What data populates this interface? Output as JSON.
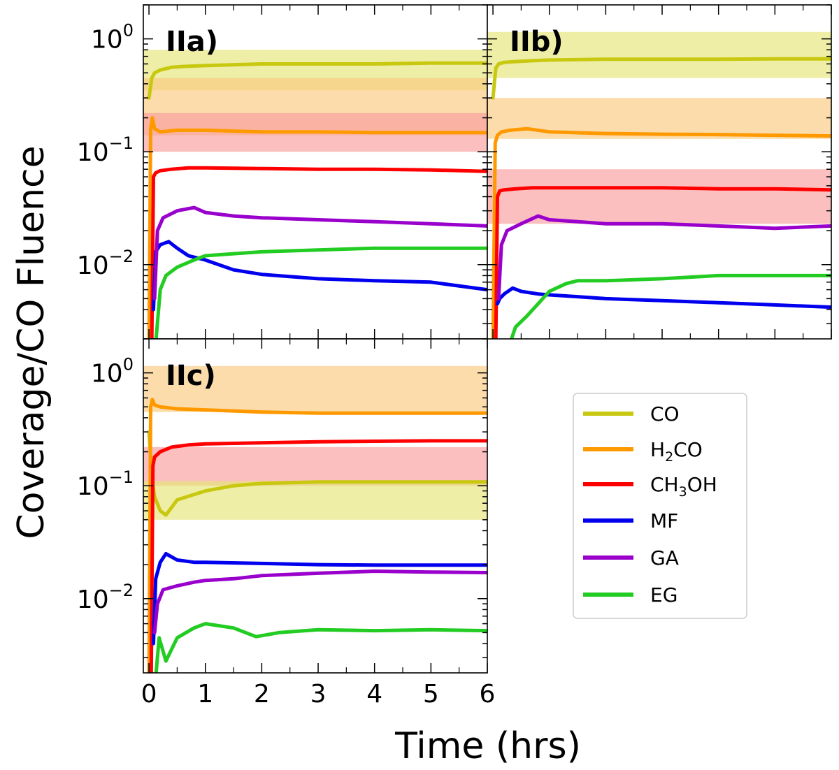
{
  "chart_data": [
    {
      "type": "line",
      "panel": "IIa)",
      "title": "",
      "xlabel": "Time (hrs)",
      "ylabel": "Coverage/CO Fluence",
      "xlim": [
        -0.1,
        6
      ],
      "ylim": [
        0.0022,
        2.0
      ],
      "yscale": "log",
      "bands": [
        {
          "species": "CO",
          "range": [
            0.35,
            0.8
          ],
          "color": "#e5e577"
        },
        {
          "species": "H2CO",
          "range": [
            0.14,
            0.45
          ],
          "color": "#fbc97e"
        },
        {
          "species": "CH3OH",
          "range": [
            0.1,
            0.22
          ],
          "color": "#f99c9c"
        }
      ],
      "series": [
        {
          "name": "CO",
          "color": "#c8c810",
          "x": [
            0,
            0.05,
            0.1,
            0.2,
            0.4,
            0.6,
            1,
            2,
            3,
            4,
            5,
            6
          ],
          "values": [
            0.3,
            0.45,
            0.5,
            0.53,
            0.56,
            0.57,
            0.58,
            0.6,
            0.6,
            0.6,
            0.61,
            0.61
          ]
        },
        {
          "name": "H2CO",
          "color": "#ff9900",
          "x": [
            0,
            0.03,
            0.06,
            0.1,
            0.2,
            0.5,
            1,
            2,
            3,
            4,
            5,
            6
          ],
          "values": [
            0.002,
            0.16,
            0.2,
            0.16,
            0.15,
            0.155,
            0.155,
            0.15,
            0.15,
            0.148,
            0.148,
            0.148
          ]
        },
        {
          "name": "CH3OH",
          "color": "#ff0000",
          "x": [
            0.05,
            0.08,
            0.12,
            0.2,
            0.4,
            0.7,
            1,
            2,
            3,
            4,
            5,
            6
          ],
          "values": [
            0.002,
            0.06,
            0.065,
            0.068,
            0.07,
            0.072,
            0.072,
            0.071,
            0.07,
            0.07,
            0.069,
            0.067
          ]
        },
        {
          "name": "MF",
          "color": "#0000ee",
          "x": [
            0.08,
            0.12,
            0.2,
            0.35,
            0.5,
            0.7,
            1,
            1.5,
            2,
            3,
            4,
            5,
            6
          ],
          "values": [
            0.004,
            0.013,
            0.015,
            0.016,
            0.014,
            0.012,
            0.011,
            0.009,
            0.0082,
            0.0075,
            0.0072,
            0.007,
            0.006
          ]
        },
        {
          "name": "GA",
          "color": "#9900cc",
          "x": [
            0.1,
            0.15,
            0.25,
            0.5,
            0.8,
            1,
            1.5,
            2,
            3,
            4,
            5,
            6
          ],
          "values": [
            0.005,
            0.02,
            0.026,
            0.03,
            0.032,
            0.029,
            0.027,
            0.026,
            0.025,
            0.024,
            0.023,
            0.022
          ]
        },
        {
          "name": "EG",
          "color": "#22cc22",
          "x": [
            0.12,
            0.2,
            0.3,
            0.5,
            0.8,
            1,
            1.5,
            2,
            3,
            4,
            5,
            6
          ],
          "values": [
            0.002,
            0.006,
            0.008,
            0.0095,
            0.011,
            0.012,
            0.0125,
            0.013,
            0.0135,
            0.014,
            0.014,
            0.014
          ]
        }
      ]
    },
    {
      "type": "line",
      "panel": "IIb)",
      "title": "",
      "xlabel": "Time (hrs)",
      "ylabel": "Coverage/CO Fluence",
      "xlim": [
        -0.1,
        6
      ],
      "ylim": [
        0.0022,
        2.0
      ],
      "yscale": "log",
      "bands": [
        {
          "species": "CO",
          "range": [
            0.45,
            1.15
          ],
          "color": "#e5e577"
        },
        {
          "species": "H2CO",
          "range": [
            0.13,
            0.3
          ],
          "color": "#fbc97e"
        },
        {
          "species": "CH3OH",
          "range": [
            0.023,
            0.07
          ],
          "color": "#f99c9c"
        }
      ],
      "series": [
        {
          "name": "CO",
          "color": "#c8c810",
          "x": [
            0,
            0.05,
            0.1,
            0.2,
            0.4,
            0.7,
            1,
            2,
            3,
            4,
            5,
            6
          ],
          "values": [
            0.3,
            0.55,
            0.6,
            0.62,
            0.63,
            0.64,
            0.65,
            0.66,
            0.66,
            0.66,
            0.665,
            0.665
          ]
        },
        {
          "name": "H2CO",
          "color": "#ff9900",
          "x": [
            0,
            0.04,
            0.08,
            0.15,
            0.3,
            0.6,
            1,
            2,
            3,
            4,
            5,
            6
          ],
          "values": [
            0.002,
            0.12,
            0.14,
            0.15,
            0.155,
            0.16,
            0.15,
            0.145,
            0.143,
            0.142,
            0.14,
            0.138
          ]
        },
        {
          "name": "CH3OH",
          "color": "#ff0000",
          "x": [
            0.05,
            0.08,
            0.12,
            0.2,
            0.4,
            0.7,
            1,
            2,
            3,
            4,
            5,
            6
          ],
          "values": [
            0.002,
            0.04,
            0.045,
            0.046,
            0.047,
            0.048,
            0.048,
            0.048,
            0.048,
            0.047,
            0.047,
            0.046
          ]
        },
        {
          "name": "MF",
          "color": "#0000ee",
          "x": [
            0.08,
            0.12,
            0.2,
            0.35,
            0.5,
            0.8,
            1,
            1.5,
            2,
            3,
            4,
            5,
            6
          ],
          "values": [
            0.0045,
            0.005,
            0.0055,
            0.0062,
            0.0058,
            0.0055,
            0.0054,
            0.0052,
            0.005,
            0.0048,
            0.0046,
            0.0044,
            0.0042
          ]
        },
        {
          "name": "GA",
          "color": "#9900cc",
          "x": [
            0.1,
            0.15,
            0.25,
            0.5,
            0.8,
            1,
            1.5,
            2,
            3,
            4,
            5,
            6
          ],
          "values": [
            0.005,
            0.015,
            0.02,
            0.023,
            0.027,
            0.025,
            0.024,
            0.023,
            0.023,
            0.022,
            0.021,
            0.022
          ]
        },
        {
          "name": "EG",
          "color": "#22cc22",
          "x": [
            0.3,
            0.4,
            0.6,
            0.8,
            1,
            1.3,
            1.5,
            2,
            3,
            4,
            5,
            6
          ],
          "values": [
            0.002,
            0.0028,
            0.0035,
            0.0045,
            0.0058,
            0.0068,
            0.0072,
            0.0072,
            0.0075,
            0.008,
            0.008,
            0.008
          ]
        }
      ]
    },
    {
      "type": "line",
      "panel": "IIc)",
      "title": "",
      "xlabel": "Time (hrs)",
      "ylabel": "Coverage/CO Fluence",
      "xlim": [
        -0.1,
        6
      ],
      "ylim": [
        0.0022,
        2.0
      ],
      "yscale": "log",
      "xticks": [
        0,
        1,
        2,
        3,
        4,
        5,
        6
      ],
      "bands": [
        {
          "species": "H2CO",
          "range": [
            0.45,
            1.15
          ],
          "color": "#fbc97e"
        },
        {
          "species": "CH3OH",
          "range": [
            0.1,
            0.22
          ],
          "color": "#f99c9c"
        },
        {
          "species": "CO",
          "range": [
            0.05,
            0.11
          ],
          "color": "#e5e577"
        }
      ],
      "series": [
        {
          "name": "CO",
          "color": "#c8c810",
          "x": [
            0,
            0.05,
            0.1,
            0.2,
            0.3,
            0.5,
            1,
            1.5,
            2,
            3,
            4,
            5,
            6
          ],
          "values": [
            0.3,
            0.12,
            0.08,
            0.06,
            0.055,
            0.075,
            0.09,
            0.1,
            0.105,
            0.108,
            0.108,
            0.108,
            0.108
          ]
        },
        {
          "name": "H2CO",
          "color": "#ff9900",
          "x": [
            0,
            0.03,
            0.06,
            0.1,
            0.2,
            0.5,
            1,
            2,
            3,
            4,
            5,
            6
          ],
          "values": [
            0.002,
            0.5,
            0.58,
            0.52,
            0.5,
            0.48,
            0.47,
            0.45,
            0.44,
            0.44,
            0.44,
            0.44
          ]
        },
        {
          "name": "CH3OH",
          "color": "#ff0000",
          "x": [
            0.04,
            0.07,
            0.1,
            0.2,
            0.4,
            0.7,
            1,
            2,
            3,
            4,
            5,
            6
          ],
          "values": [
            0.002,
            0.15,
            0.18,
            0.2,
            0.22,
            0.23,
            0.235,
            0.24,
            0.245,
            0.248,
            0.25,
            0.25
          ]
        },
        {
          "name": "MF",
          "color": "#0000ee",
          "x": [
            0.08,
            0.12,
            0.2,
            0.3,
            0.5,
            0.8,
            1,
            2,
            3,
            4,
            5,
            6
          ],
          "values": [
            0.004,
            0.015,
            0.021,
            0.025,
            0.022,
            0.021,
            0.021,
            0.0205,
            0.02,
            0.0198,
            0.0198,
            0.0198
          ]
        },
        {
          "name": "GA",
          "color": "#9900cc",
          "x": [
            0.1,
            0.15,
            0.25,
            0.5,
            0.8,
            1,
            1.5,
            2,
            3,
            4,
            5,
            6
          ],
          "values": [
            0.005,
            0.009,
            0.012,
            0.013,
            0.014,
            0.0145,
            0.015,
            0.016,
            0.0168,
            0.0175,
            0.0172,
            0.017
          ]
        },
        {
          "name": "EG",
          "color": "#22cc22",
          "x": [
            0.12,
            0.18,
            0.3,
            0.5,
            0.8,
            1,
            1.5,
            1.9,
            2.3,
            3,
            4,
            5,
            6
          ],
          "values": [
            0.002,
            0.0045,
            0.0028,
            0.0045,
            0.0055,
            0.006,
            0.0055,
            0.0046,
            0.005,
            0.0053,
            0.0052,
            0.0053,
            0.0052
          ]
        }
      ]
    }
  ],
  "axes": {
    "xlabel": "Time (hrs)",
    "ylabel": "Coverage/CO Fluence",
    "xtick_labels": [
      "0",
      "1",
      "2",
      "3",
      "4",
      "5",
      "6"
    ],
    "ytick_bases": [
      "10",
      "10",
      "10"
    ],
    "ytick_exponents": [
      "0",
      "−1",
      "−2"
    ],
    "ytick_values": [
      1,
      0.1,
      0.01
    ]
  },
  "legend": {
    "position": "lower-right",
    "entries": [
      {
        "label": "CO",
        "color": "#c8c810"
      },
      {
        "label": "H₂CO",
        "label_parts": [
          "H",
          "2",
          "CO"
        ],
        "color": "#ff9900"
      },
      {
        "label": "CH₃OH",
        "label_parts": [
          "CH",
          "3",
          "OH"
        ],
        "color": "#ff0000"
      },
      {
        "label": "MF",
        "color": "#0000ee"
      },
      {
        "label": "GA",
        "color": "#9900cc"
      },
      {
        "label": "EG",
        "color": "#22cc22"
      }
    ]
  }
}
